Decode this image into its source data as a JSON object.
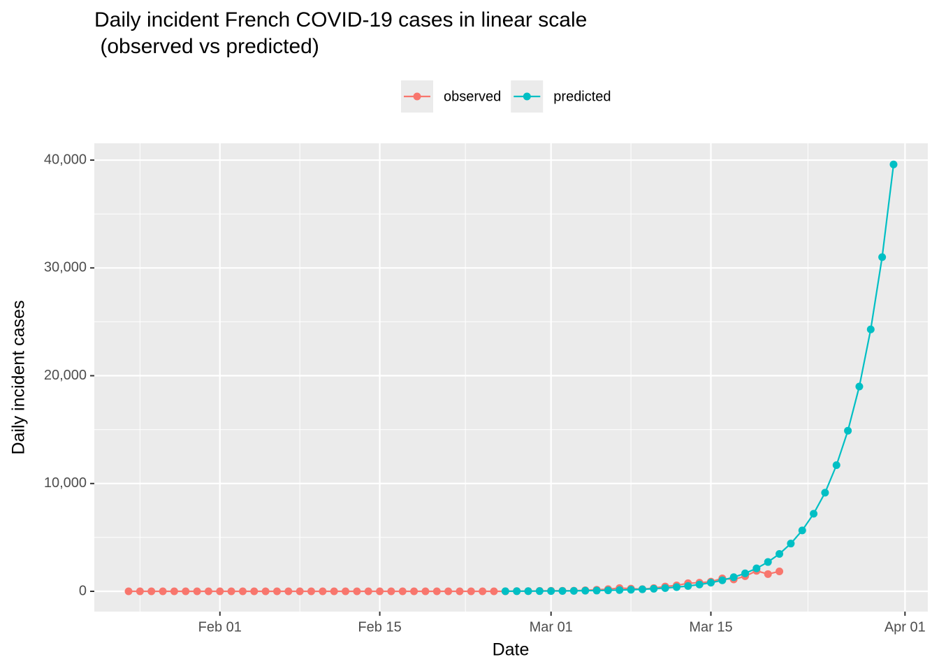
{
  "chart_data": {
    "type": "line",
    "title": "Daily incident French COVID-19 cases in linear scale",
    "subtitle": " (observed vs predicted)",
    "x_label": "Date",
    "y_label": "Daily incident cases",
    "legend": "top",
    "grid": true,
    "x": [
      "Jan 24",
      "Jan 25",
      "Jan 26",
      "Jan 27",
      "Jan 28",
      "Jan 29",
      "Jan 30",
      "Jan 31",
      "Feb 01",
      "Feb 02",
      "Feb 03",
      "Feb 04",
      "Feb 05",
      "Feb 06",
      "Feb 07",
      "Feb 08",
      "Feb 09",
      "Feb 10",
      "Feb 11",
      "Feb 12",
      "Feb 13",
      "Feb 14",
      "Feb 15",
      "Feb 16",
      "Feb 17",
      "Feb 18",
      "Feb 19",
      "Feb 20",
      "Feb 21",
      "Feb 22",
      "Feb 23",
      "Feb 24",
      "Feb 25",
      "Feb 26",
      "Feb 27",
      "Feb 28",
      "Feb 29",
      "Mar 01",
      "Mar 02",
      "Mar 03",
      "Mar 04",
      "Mar 05",
      "Mar 06",
      "Mar 07",
      "Mar 08",
      "Mar 09",
      "Mar 10",
      "Mar 11",
      "Mar 12",
      "Mar 13",
      "Mar 14",
      "Mar 15",
      "Mar 16",
      "Mar 17",
      "Mar 18",
      "Mar 19",
      "Mar 20",
      "Mar 21",
      "Mar 22",
      "Mar 23",
      "Mar 24",
      "Mar 25",
      "Mar 26",
      "Mar 27",
      "Mar 28",
      "Mar 29",
      "Mar 30",
      "Mar 31"
    ],
    "series": [
      {
        "name": "observed",
        "color": "#F8766D",
        "values": [
          0,
          0,
          0,
          0,
          0,
          0,
          0,
          0,
          0,
          0,
          0,
          0,
          0,
          0,
          0,
          0,
          0,
          0,
          0,
          0,
          0,
          0,
          0,
          0,
          0,
          0,
          0,
          0,
          0,
          0,
          0,
          0,
          0,
          2,
          20,
          19,
          43,
          50,
          50,
          60,
          100,
          150,
          200,
          300,
          250,
          200,
          300,
          450,
          550,
          750,
          800,
          900,
          1200,
          1100,
          1400,
          1900,
          1600,
          1850,
          null,
          null,
          null,
          null,
          null,
          null,
          null,
          null,
          null,
          null
        ]
      },
      {
        "name": "predicted",
        "color": "#00BFC4",
        "values": [
          null,
          null,
          null,
          null,
          null,
          null,
          null,
          null,
          null,
          null,
          null,
          null,
          null,
          null,
          null,
          null,
          null,
          null,
          null,
          null,
          null,
          null,
          null,
          null,
          null,
          null,
          null,
          null,
          null,
          null,
          null,
          null,
          null,
          10,
          13,
          16,
          21,
          27,
          34,
          43,
          55,
          70,
          90,
          115,
          146,
          187,
          238,
          304,
          388,
          495,
          630,
          800,
          1025,
          1310,
          1670,
          2130,
          2720,
          3470,
          4430,
          5650,
          7200,
          9150,
          11700,
          14900,
          19000,
          24300,
          31000,
          39600
        ]
      }
    ],
    "xlim": [
      "Jan 21",
      "Apr 03"
    ],
    "xticks": [
      "Feb 01",
      "Feb 15",
      "Mar 01",
      "Mar 15",
      "Apr 01"
    ],
    "ylim": [
      -1880,
      41560
    ],
    "yticks": [
      0,
      {
        "value": 10000,
        "label": "10,000"
      },
      {
        "value": 20000,
        "label": "20,000"
      },
      {
        "value": 30000,
        "label": "30,000"
      },
      {
        "value": 40000,
        "label": "40,000"
      }
    ]
  }
}
